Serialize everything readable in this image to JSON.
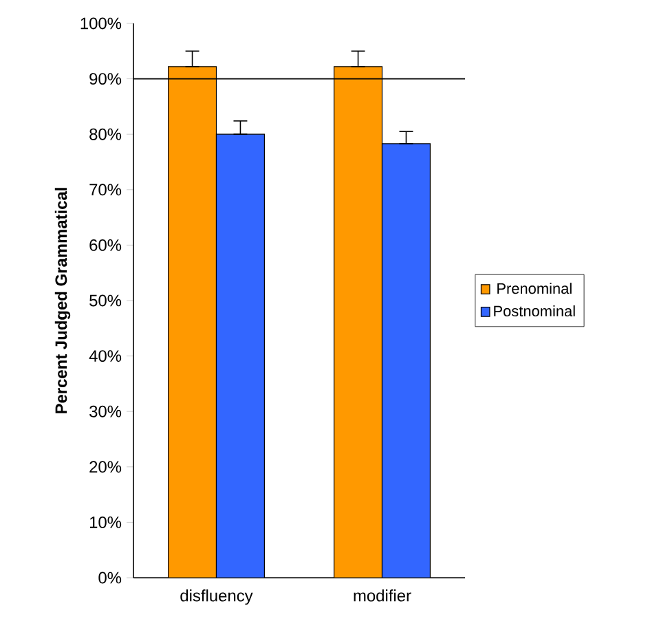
{
  "chart_data": {
    "type": "bar",
    "ylabel": "Percent Judged Grammatical",
    "categories": [
      "disfluency",
      "modifier"
    ],
    "series": [
      {
        "name": "Prenominal",
        "color": "#ff9900",
        "values": [
          92.2,
          92.2
        ],
        "errors": [
          [
            92.2,
            95.0
          ],
          [
            92.2,
            95.0
          ]
        ]
      },
      {
        "name": "Postnominal",
        "color": "#3366ff",
        "values": [
          80.0,
          78.3
        ],
        "errors": [
          [
            80.0,
            82.4
          ],
          [
            78.3,
            80.5
          ]
        ]
      }
    ],
    "ylim": [
      0,
      100
    ],
    "yticks": [
      {
        "value": 0,
        "label": "0%"
      },
      {
        "value": 10,
        "label": "10%"
      },
      {
        "value": 20,
        "label": "20%"
      },
      {
        "value": 30,
        "label": "30%"
      },
      {
        "value": 40,
        "label": "40%"
      },
      {
        "value": 50,
        "label": "50%"
      },
      {
        "value": 60,
        "label": "60%"
      },
      {
        "value": 70,
        "label": "70%"
      },
      {
        "value": 80,
        "label": "80%"
      },
      {
        "value": 90,
        "label": "90%"
      },
      {
        "value": 100,
        "label": "100%"
      }
    ],
    "ref_lines": [
      {
        "axis": "y",
        "value": 90,
        "color": "#000000"
      }
    ],
    "legend": "right",
    "grid": false
  }
}
